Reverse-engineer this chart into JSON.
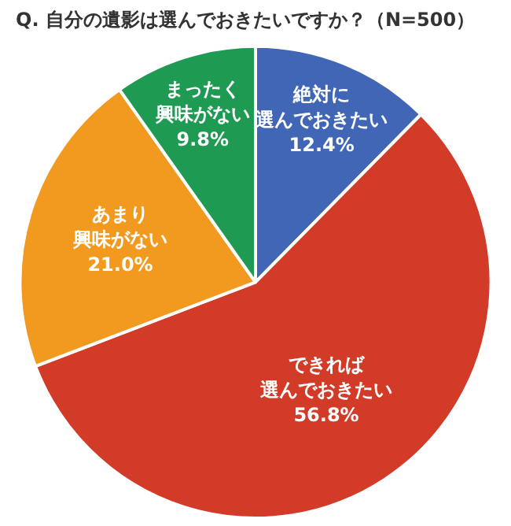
{
  "chart_data": {
    "type": "pie",
    "title": "Q. 自分の遺影は選んでおきたいですか？（N=500）",
    "categories": [
      "絶対に選んでおきたい",
      "できれば選んでおきたい",
      "あまり興味がない",
      "まったく興味がない"
    ],
    "values": [
      12.4,
      56.8,
      21.0,
      9.8
    ],
    "colors": [
      "#4166b5",
      "#d13b27",
      "#f19a1f",
      "#1f9a52"
    ],
    "value_labels": [
      "12.4%",
      "56.8%",
      "21.0%",
      "9.8%"
    ],
    "legend": false
  }
}
